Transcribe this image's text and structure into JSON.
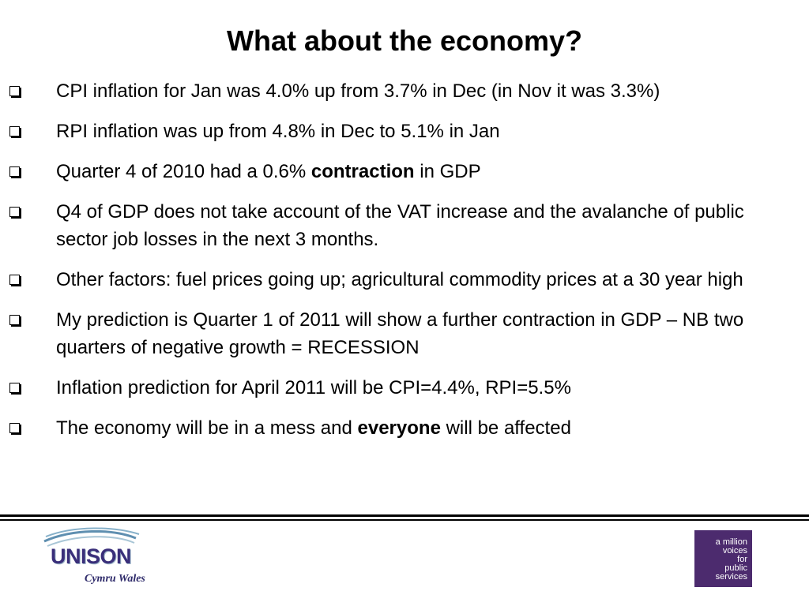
{
  "slide": {
    "title": "What about the economy?",
    "bullets": [
      {
        "text": "CPI inflation for Jan was 4.0% up from 3.7% in Dec (in Nov it was 3.3%)"
      },
      {
        "text": "RPI inflation was up from 4.8% in Dec to 5.1% in Jan"
      },
      {
        "pre": "Quarter 4 of 2010 had a 0.6% ",
        "bold": "contraction",
        "post": " in GDP"
      },
      {
        "text": "Q4 of GDP does not take account of the VAT increase and the avalanche of public sector job losses in the next 3 months."
      },
      {
        "text": "Other factors: fuel prices going up; agricultural commodity prices at a 30 year high"
      },
      {
        "text": "My prediction is Quarter 1 of 2011 will show a further contraction in GDP – NB two quarters of negative growth = RECESSION"
      },
      {
        "text": "Inflation prediction for April 2011 will be CPI=4.4%, RPI=5.5%"
      },
      {
        "pre": "The economy will be in a mess and ",
        "bold": "everyone",
        "post": " will be affected"
      }
    ]
  },
  "footer": {
    "unison_logo": {
      "name": "UNISON",
      "subtitle": "Cymru Wales",
      "color": "#3a2f7a"
    },
    "million_voices_logo": {
      "lines": [
        "a million",
        "voices",
        "for",
        "public",
        "services"
      ],
      "background": "#4c2b6e"
    }
  }
}
